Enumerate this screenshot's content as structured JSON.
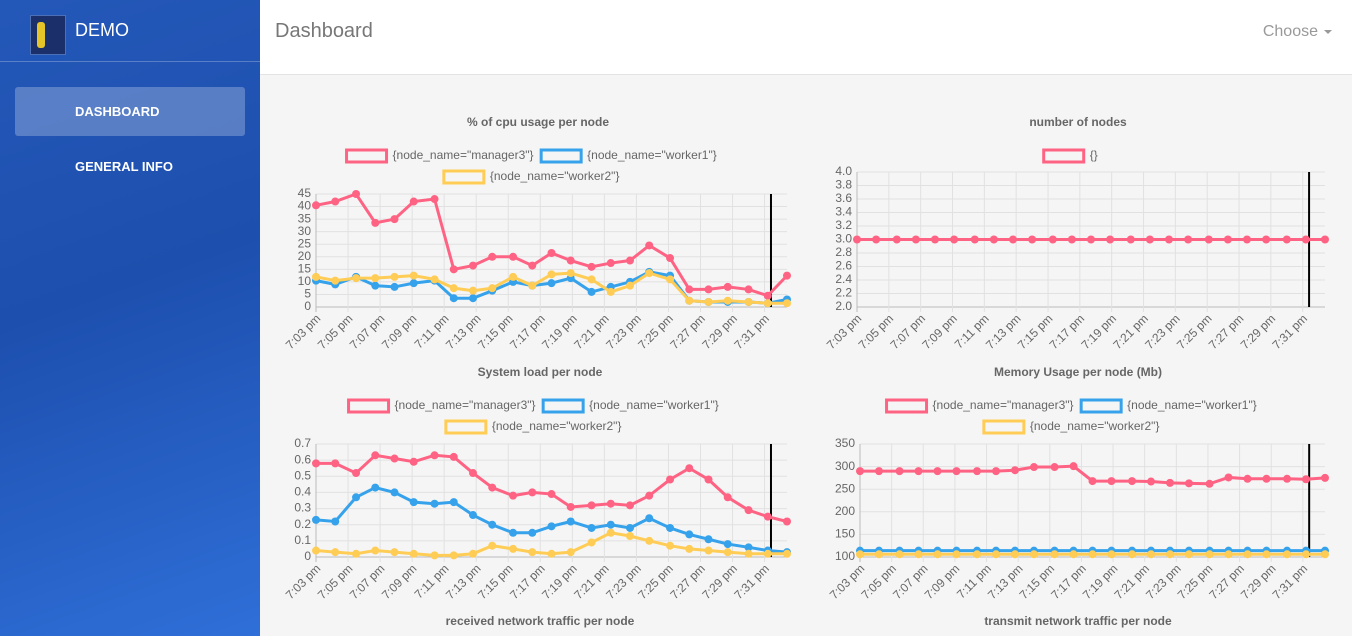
{
  "sidebar": {
    "brand": "DEMO",
    "nav": [
      "DASHBOARD",
      "GENERAL INFO"
    ],
    "active_nav": 0
  },
  "header": {
    "title": "Dashboard",
    "menu": "Choose"
  },
  "chart_data": [
    {
      "type": "line",
      "title": "% of cpu usage per node",
      "x": [
        3,
        4.2,
        5.5,
        6.7,
        7.9,
        9.1,
        10.4,
        11.6,
        12.8,
        14,
        15.3,
        16.5,
        17.7,
        18.9,
        20.2,
        21.4,
        22.6,
        23.8,
        25.1,
        26.3,
        27.5,
        28.7,
        30,
        31.2,
        32.4
      ],
      "xlim": [
        3,
        32.4
      ],
      "xticks": [
        {
          "value": 3,
          "label": "7:03 pm"
        },
        {
          "value": 5,
          "label": "7:05 pm"
        },
        {
          "value": 7,
          "label": "7:07 pm"
        },
        {
          "value": 9,
          "label": "7:09 pm"
        },
        {
          "value": 11,
          "label": "7:11 pm"
        },
        {
          "value": 13,
          "label": "7:13 pm"
        },
        {
          "value": 15,
          "label": "7:15 pm"
        },
        {
          "value": 17,
          "label": "7:17 pm"
        },
        {
          "value": 19,
          "label": "7:19 pm"
        },
        {
          "value": 21,
          "label": "7:21 pm"
        },
        {
          "value": 23,
          "label": "7:23 pm"
        },
        {
          "value": 25,
          "label": "7:25 pm"
        },
        {
          "value": 27,
          "label": "7:27 pm"
        },
        {
          "value": 29,
          "label": "7:29 pm"
        },
        {
          "value": 31,
          "label": "7:31 pm"
        }
      ],
      "ylim": [
        0,
        45
      ],
      "yticks": [
        0,
        5,
        10,
        15,
        20,
        25,
        30,
        35,
        40,
        45
      ],
      "grid": true,
      "vline": 31.4,
      "series": [
        {
          "name": "{node_name=\"manager3\"}",
          "color": "#ff6384",
          "values": [
            40.5,
            42,
            45,
            33.5,
            35,
            42,
            43,
            15,
            16.5,
            20,
            20,
            16.5,
            21.5,
            18.5,
            16,
            17.5,
            18.5,
            24.5,
            19.5,
            7,
            7,
            8,
            7,
            4.5,
            12.5
          ]
        },
        {
          "name": "{node_name=\"worker1\"}",
          "color": "#36a2eb",
          "values": [
            10.5,
            9,
            12,
            8.5,
            8,
            9.5,
            10.5,
            3.5,
            3.5,
            6.5,
            10,
            8.5,
            9.5,
            11.5,
            6,
            8,
            10,
            14,
            12.5,
            2.5,
            2,
            2,
            2,
            1.5,
            3
          ]
        },
        {
          "name": "{node_name=\"worker2\"}",
          "color": "#ffcd56",
          "values": [
            12,
            10.5,
            11.5,
            11.5,
            12,
            12.5,
            11,
            7.5,
            6.5,
            7.5,
            12,
            8.5,
            13,
            13.5,
            11,
            6,
            8.5,
            13.5,
            11,
            2.5,
            2,
            2.5,
            2,
            1.5,
            1.5
          ]
        }
      ]
    },
    {
      "type": "line",
      "title": "number of nodes",
      "x": [
        3,
        4.2,
        5.5,
        6.7,
        7.9,
        9.1,
        10.4,
        11.6,
        12.8,
        14,
        15.3,
        16.5,
        17.7,
        18.9,
        20.2,
        21.4,
        22.6,
        23.8,
        25.1,
        26.3,
        27.5,
        28.7,
        30,
        31.2,
        32.4
      ],
      "xlim": [
        3,
        32.4
      ],
      "xticks": [
        {
          "value": 3,
          "label": "7:03 pm"
        },
        {
          "value": 5,
          "label": "7:05 pm"
        },
        {
          "value": 7,
          "label": "7:07 pm"
        },
        {
          "value": 9,
          "label": "7:09 pm"
        },
        {
          "value": 11,
          "label": "7:11 pm"
        },
        {
          "value": 13,
          "label": "7:13 pm"
        },
        {
          "value": 15,
          "label": "7:15 pm"
        },
        {
          "value": 17,
          "label": "7:17 pm"
        },
        {
          "value": 19,
          "label": "7:19 pm"
        },
        {
          "value": 21,
          "label": "7:21 pm"
        },
        {
          "value": 23,
          "label": "7:23 pm"
        },
        {
          "value": 25,
          "label": "7:25 pm"
        },
        {
          "value": 27,
          "label": "7:27 pm"
        },
        {
          "value": 29,
          "label": "7:29 pm"
        },
        {
          "value": 31,
          "label": "7:31 pm"
        }
      ],
      "ylim": [
        2,
        4
      ],
      "yticks": [
        {
          "value": 2,
          "label": "2.0"
        },
        {
          "value": 2.2,
          "label": "2.2"
        },
        {
          "value": 2.4,
          "label": "2.4"
        },
        {
          "value": 2.6,
          "label": "2.6"
        },
        {
          "value": 2.8,
          "label": "2.8"
        },
        {
          "value": 3,
          "label": "3.0"
        },
        {
          "value": 3.2,
          "label": "3.2"
        },
        {
          "value": 3.4,
          "label": "3.4"
        },
        {
          "value": 3.6,
          "label": "3.6"
        },
        {
          "value": 3.8,
          "label": "3.8"
        },
        {
          "value": 4,
          "label": "4.0"
        }
      ],
      "grid": true,
      "vline": 31.4,
      "series": [
        {
          "name": "{}",
          "color": "#ff6384",
          "values": [
            3,
            3,
            3,
            3,
            3,
            3,
            3,
            3,
            3,
            3,
            3,
            3,
            3,
            3,
            3,
            3,
            3,
            3,
            3,
            3,
            3,
            3,
            3,
            3,
            3
          ]
        }
      ]
    },
    {
      "type": "line",
      "title": "System load per node",
      "x": [
        3,
        4.2,
        5.5,
        6.7,
        7.9,
        9.1,
        10.4,
        11.6,
        12.8,
        14,
        15.3,
        16.5,
        17.7,
        18.9,
        20.2,
        21.4,
        22.6,
        23.8,
        25.1,
        26.3,
        27.5,
        28.7,
        30,
        31.2,
        32.4
      ],
      "xlim": [
        3,
        32.4
      ],
      "xticks": [
        {
          "value": 3,
          "label": "7:03 pm"
        },
        {
          "value": 5,
          "label": "7:05 pm"
        },
        {
          "value": 7,
          "label": "7:07 pm"
        },
        {
          "value": 9,
          "label": "7:09 pm"
        },
        {
          "value": 11,
          "label": "7:11 pm"
        },
        {
          "value": 13,
          "label": "7:13 pm"
        },
        {
          "value": 15,
          "label": "7:15 pm"
        },
        {
          "value": 17,
          "label": "7:17 pm"
        },
        {
          "value": 19,
          "label": "7:19 pm"
        },
        {
          "value": 21,
          "label": "7:21 pm"
        },
        {
          "value": 23,
          "label": "7:23 pm"
        },
        {
          "value": 25,
          "label": "7:25 pm"
        },
        {
          "value": 27,
          "label": "7:27 pm"
        },
        {
          "value": 29,
          "label": "7:29 pm"
        },
        {
          "value": 31,
          "label": "7:31 pm"
        }
      ],
      "ylim": [
        0,
        0.7
      ],
      "yticks": [
        0,
        0.1,
        0.2,
        0.3,
        0.4,
        0.5,
        0.6,
        0.7
      ],
      "grid": true,
      "vline": 31.4,
      "series": [
        {
          "name": "{node_name=\"manager3\"}",
          "color": "#ff6384",
          "values": [
            0.58,
            0.58,
            0.52,
            0.63,
            0.61,
            0.59,
            0.63,
            0.62,
            0.52,
            0.43,
            0.38,
            0.4,
            0.39,
            0.31,
            0.32,
            0.33,
            0.32,
            0.38,
            0.48,
            0.55,
            0.48,
            0.37,
            0.29,
            0.25,
            0.22
          ]
        },
        {
          "name": "{node_name=\"worker1\"}",
          "color": "#36a2eb",
          "values": [
            0.23,
            0.22,
            0.37,
            0.43,
            0.4,
            0.34,
            0.33,
            0.34,
            0.26,
            0.2,
            0.15,
            0.15,
            0.19,
            0.22,
            0.18,
            0.2,
            0.18,
            0.24,
            0.18,
            0.14,
            0.11,
            0.08,
            0.06,
            0.04,
            0.03
          ]
        },
        {
          "name": "{node_name=\"worker2\"}",
          "color": "#ffcd56",
          "values": [
            0.04,
            0.03,
            0.02,
            0.04,
            0.03,
            0.02,
            0.01,
            0.01,
            0.02,
            0.07,
            0.05,
            0.03,
            0.02,
            0.03,
            0.09,
            0.15,
            0.13,
            0.1,
            0.07,
            0.05,
            0.04,
            0.03,
            0.02,
            0.02,
            0.02
          ]
        }
      ]
    },
    {
      "type": "line",
      "title": "Memory Usage per node (Mb)",
      "x": [
        3,
        4.2,
        5.5,
        6.7,
        7.9,
        9.1,
        10.4,
        11.6,
        12.8,
        14,
        15.3,
        16.5,
        17.7,
        18.9,
        20.2,
        21.4,
        22.6,
        23.8,
        25.1,
        26.3,
        27.5,
        28.7,
        30,
        31.2,
        32.4
      ],
      "xlim": [
        3,
        32.4
      ],
      "xticks": [
        {
          "value": 3,
          "label": "7:03 pm"
        },
        {
          "value": 5,
          "label": "7:05 pm"
        },
        {
          "value": 7,
          "label": "7:07 pm"
        },
        {
          "value": 9,
          "label": "7:09 pm"
        },
        {
          "value": 11,
          "label": "7:11 pm"
        },
        {
          "value": 13,
          "label": "7:13 pm"
        },
        {
          "value": 15,
          "label": "7:15 pm"
        },
        {
          "value": 17,
          "label": "7:17 pm"
        },
        {
          "value": 19,
          "label": "7:19 pm"
        },
        {
          "value": 21,
          "label": "7:21 pm"
        },
        {
          "value": 23,
          "label": "7:23 pm"
        },
        {
          "value": 25,
          "label": "7:25 pm"
        },
        {
          "value": 27,
          "label": "7:27 pm"
        },
        {
          "value": 29,
          "label": "7:29 pm"
        },
        {
          "value": 31,
          "label": "7:31 pm"
        }
      ],
      "ylim": [
        100,
        350
      ],
      "yticks": [
        100,
        150,
        200,
        250,
        300,
        350
      ],
      "grid": true,
      "vline": 31.4,
      "series": [
        {
          "name": "{node_name=\"manager3\"}",
          "color": "#ff6384",
          "values": [
            290,
            290,
            290,
            290,
            290,
            290,
            290,
            290,
            292,
            299,
            299,
            301,
            268,
            268,
            268,
            267,
            264,
            263,
            262,
            276,
            273,
            273,
            273,
            272,
            275
          ]
        },
        {
          "name": "{node_name=\"worker1\"}",
          "color": "#36a2eb",
          "values": [
            114,
            114,
            114,
            114,
            114,
            114,
            114,
            114,
            114,
            114,
            114,
            114,
            114,
            114,
            114,
            114,
            114,
            114,
            114,
            114,
            114,
            114,
            114,
            114,
            114
          ]
        },
        {
          "name": "{node_name=\"worker2\"}",
          "color": "#ffcd56",
          "values": [
            106,
            106,
            106,
            106,
            106,
            106,
            106,
            106,
            106,
            106,
            106,
            106,
            106,
            106,
            106,
            106,
            106,
            106,
            106,
            106,
            106,
            106,
            106,
            106,
            106
          ]
        }
      ]
    }
  ],
  "more_charts": [
    "received network traffic per node",
    "transmit network traffic per node"
  ]
}
